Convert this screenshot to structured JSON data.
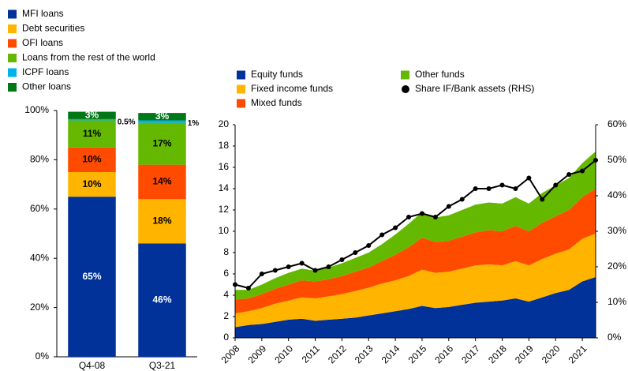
{
  "chart_data": [
    {
      "type": "bar",
      "stacked": true,
      "categories": [
        "Q4-08",
        "Q3-21"
      ],
      "series": [
        {
          "name": "MFI loans",
          "color": "#003299",
          "values": [
            65,
            46
          ],
          "value_labels": [
            "65%",
            "46%"
          ]
        },
        {
          "name": "Debt securities",
          "color": "#ffb400",
          "values": [
            10,
            18
          ],
          "value_labels": [
            "10%",
            "18%"
          ]
        },
        {
          "name": "OFI loans",
          "color": "#ff4b00",
          "values": [
            10,
            14
          ],
          "value_labels": [
            "10%",
            "14%"
          ]
        },
        {
          "name": "Loans from the rest of the world",
          "color": "#65b800",
          "values": [
            11,
            17
          ],
          "value_labels": [
            "11%",
            "17%"
          ]
        },
        {
          "name": "ICPF loans",
          "color": "#00b1ea",
          "values": [
            0.5,
            1
          ],
          "value_labels": [
            "0.5%",
            "1%"
          ]
        },
        {
          "name": "Other loans",
          "color": "#007816",
          "values": [
            3,
            3
          ],
          "value_labels": [
            "3%",
            "3%"
          ]
        }
      ],
      "ylim": [
        0,
        100
      ],
      "yticks": [
        {
          "value": 0,
          "label": "0%"
        },
        {
          "value": 20,
          "label": "20%"
        },
        {
          "value": 40,
          "label": "40%"
        },
        {
          "value": 60,
          "label": "60%"
        },
        {
          "value": 80,
          "label": "80%"
        },
        {
          "value": 100,
          "label": "100%"
        }
      ]
    },
    {
      "type": "area",
      "stacked": true,
      "x": [
        2008,
        2008.5,
        2009,
        2009.5,
        2010,
        2010.5,
        2011,
        2011.5,
        2012,
        2012.5,
        2013,
        2013.5,
        2014,
        2014.5,
        2015,
        2015.5,
        2016,
        2016.5,
        2017,
        2017.5,
        2018,
        2018.5,
        2019,
        2019.5,
        2020,
        2020.5,
        2021,
        2021.5
      ],
      "series": [
        {
          "name": "Equity funds",
          "color": "#003299",
          "values": [
            1.0,
            1.2,
            1.3,
            1.5,
            1.7,
            1.8,
            1.6,
            1.7,
            1.8,
            1.9,
            2.1,
            2.3,
            2.5,
            2.7,
            3.0,
            2.8,
            2.9,
            3.1,
            3.3,
            3.4,
            3.5,
            3.7,
            3.4,
            3.8,
            4.2,
            4.5,
            5.3,
            5.7
          ]
        },
        {
          "name": "Fixed income funds",
          "color": "#ffb400",
          "values": [
            1.3,
            1.3,
            1.5,
            1.7,
            1.8,
            2.0,
            2.1,
            2.2,
            2.3,
            2.5,
            2.6,
            2.8,
            2.9,
            3.1,
            3.4,
            3.3,
            3.3,
            3.4,
            3.5,
            3.5,
            3.3,
            3.5,
            3.4,
            3.6,
            3.7,
            3.8,
            4.0,
            4.1
          ]
        },
        {
          "name": "Mixed funds",
          "color": "#ff4b00",
          "values": [
            1.3,
            1.2,
            1.3,
            1.4,
            1.5,
            1.6,
            1.6,
            1.6,
            1.7,
            1.8,
            1.9,
            2.1,
            2.4,
            2.7,
            3.0,
            2.9,
            2.9,
            3.0,
            3.1,
            3.2,
            3.2,
            3.3,
            3.2,
            3.4,
            3.5,
            3.7,
            3.9,
            4.2
          ]
        },
        {
          "name": "Other funds",
          "color": "#65b800",
          "values": [
            0.9,
            0.8,
            0.9,
            1.0,
            1.1,
            1.1,
            1.0,
            1.1,
            1.2,
            1.3,
            1.4,
            1.6,
            1.9,
            2.2,
            2.4,
            2.3,
            2.4,
            2.5,
            2.6,
            2.6,
            2.6,
            2.7,
            2.6,
            2.8,
            2.9,
            3.0,
            3.2,
            3.5
          ]
        },
        {
          "name": "Share IF/Bank assets (RHS)",
          "color": "#000000",
          "type": "line",
          "axis": "y2",
          "values": [
            15,
            14,
            18,
            19,
            20,
            21,
            19,
            20,
            22,
            24,
            26,
            29,
            31,
            34,
            35,
            34,
            37,
            39,
            42,
            42,
            43,
            42,
            45,
            39,
            43,
            46,
            47,
            50
          ]
        }
      ],
      "xlim": [
        2008,
        2021.5
      ],
      "xticks": [
        2008,
        2009,
        2010,
        2011,
        2012,
        2013,
        2014,
        2015,
        2016,
        2017,
        2018,
        2019,
        2020,
        2021
      ],
      "ylim": [
        0,
        20
      ],
      "yticks": [
        0,
        2,
        4,
        6,
        8,
        10,
        12,
        14,
        16,
        18,
        20
      ],
      "y2lim": [
        0,
        60
      ],
      "y2ticks": [
        {
          "value": 0,
          "label": "0%"
        },
        {
          "value": 10,
          "label": "10%"
        },
        {
          "value": 20,
          "label": "20%"
        },
        {
          "value": 30,
          "label": "30%"
        },
        {
          "value": 40,
          "label": "40%"
        },
        {
          "value": 50,
          "label": "50%"
        },
        {
          "value": 60,
          "label": "60%"
        }
      ]
    }
  ]
}
